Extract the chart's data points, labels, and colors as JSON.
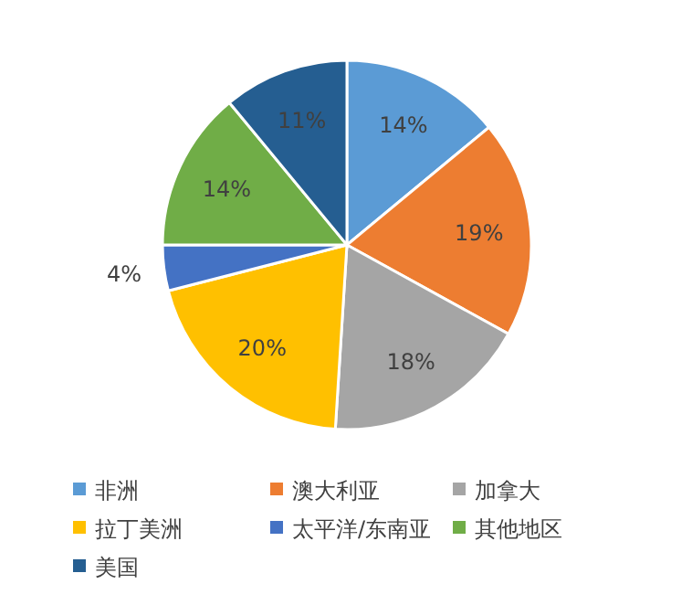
{
  "chart_data": {
    "type": "pie",
    "categories": [
      "非洲",
      "澳大利亚",
      "加拿大",
      "拉丁美洲",
      "太平洋/东南亚",
      "其他地区",
      "美国"
    ],
    "values": [
      14,
      19,
      18,
      20,
      4,
      14,
      11
    ],
    "colors": [
      "#5b9bd5",
      "#ed7d31",
      "#a5a5a5",
      "#ffc000",
      "#4472c4",
      "#70ad47",
      "#255e91"
    ],
    "value_labels": [
      "14%",
      "19%",
      "18%",
      "20%",
      "4%",
      "14%",
      "11%"
    ],
    "legend": "bottom"
  }
}
